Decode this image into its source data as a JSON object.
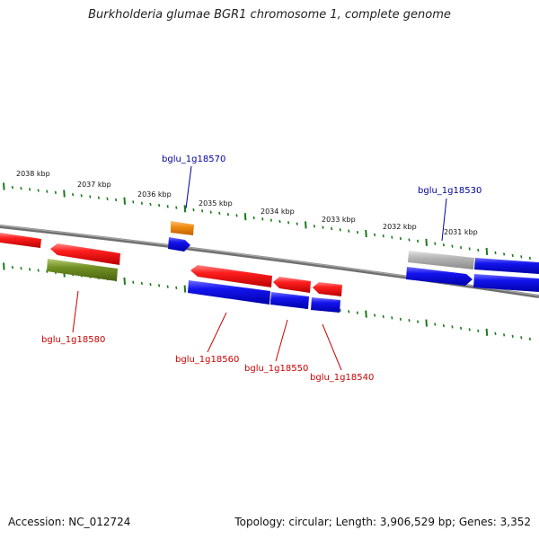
{
  "title": "Burkholderia glumae BGR1 chromosome 1, complete genome",
  "accession": "Accession: NC_012724",
  "topology": "Topology: circular; Length: 3,906,529 bp; Genes: 3,352",
  "colors": {
    "backbone": "#7f7f7f",
    "tick_mark": "#1a7a1a",
    "label_blue": "#00009c",
    "label_red": "#cc0000",
    "feature_red": "#e81010",
    "feature_blue": "#1414e6",
    "feature_orange": "#f28c10",
    "feature_olive": "#6f8f22",
    "feature_gray": "#b0b0b0"
  },
  "kbp_ticks": [
    "2038 kbp",
    "2037 kbp",
    "2036 kbp",
    "2035 kbp",
    "2034 kbp",
    "2033 kbp",
    "2032 kbp",
    "2031 kbp"
  ],
  "gene_labels": {
    "bglu_1g18570": "bglu_1g18570",
    "bglu_1g18530": "bglu_1g18530",
    "bglu_1g18580": "bglu_1g18580",
    "bglu_1g18560": "bglu_1g18560",
    "bglu_1g18550": "bglu_1g18550",
    "bglu_1g18540": "bglu_1g18540"
  }
}
